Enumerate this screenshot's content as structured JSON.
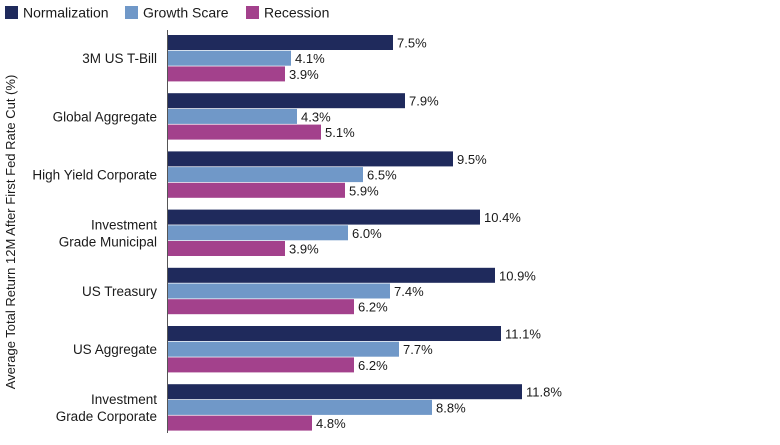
{
  "chart_data": {
    "type": "bar",
    "orientation": "horizontal",
    "ylabel": "Average Total Return 12M After First Fed Rate Cut (%)",
    "xlabel": "",
    "title": "",
    "legend_position": "top-left",
    "grid": false,
    "xlim": [
      0,
      12.5
    ],
    "categories": [
      [
        "3M US T-Bill"
      ],
      [
        "Global Aggregate"
      ],
      [
        "High Yield Corporate"
      ],
      [
        "Investment",
        "Grade Municipal"
      ],
      [
        "US Treasury"
      ],
      [
        "US Aggregate"
      ],
      [
        "Investment",
        "Grade Corporate"
      ]
    ],
    "series": [
      {
        "name": "Normalization",
        "color": "#1f2a5c",
        "values": [
          7.5,
          7.9,
          9.5,
          10.4,
          10.9,
          11.1,
          11.8
        ]
      },
      {
        "name": "Growth Scare",
        "color": "#7098c8",
        "values": [
          4.1,
          4.3,
          6.5,
          6.0,
          7.4,
          7.7,
          8.8
        ]
      },
      {
        "name": "Recession",
        "color": "#a3418c",
        "values": [
          3.9,
          5.1,
          5.9,
          3.9,
          6.2,
          6.2,
          4.8
        ]
      }
    ],
    "value_suffix": "%"
  }
}
